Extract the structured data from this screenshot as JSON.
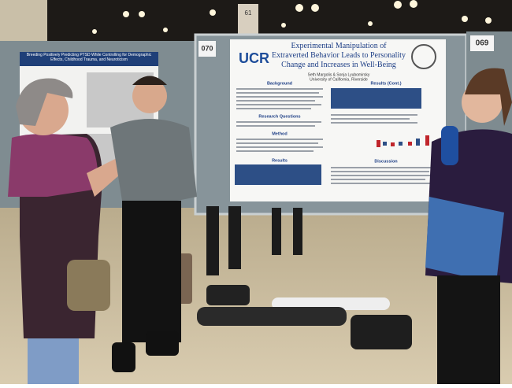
{
  "signs": {
    "pillar": "61",
    "board_left": "070",
    "board_right": "069"
  },
  "left_poster": {
    "title": "Breeding Positively Predicting PTSD While Controlling for Demographic Effects, Childhood Trauma, and Neuroticism"
  },
  "poster": {
    "logo": "UCR",
    "title": "Experimental Manipulation of Extraverted Behavior Leads to Personality Change and Increases in Well-Being",
    "authors": "Seth Margolis & Sonja Lyubomirsky",
    "affiliation": "University of California, Riverside",
    "sections": [
      "Background",
      "Research Questions",
      "Method",
      "Results",
      "Results (Cont.)",
      "Discussion"
    ]
  }
}
